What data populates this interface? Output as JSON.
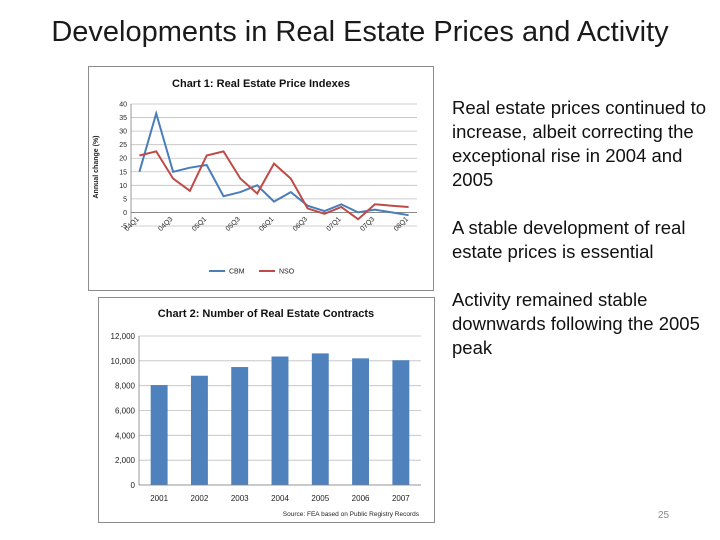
{
  "slide": {
    "title": "Developments in Real Estate Prices and Activity",
    "page_number": "25"
  },
  "bullets": [
    "Real estate prices continued to increase, albeit correcting the exceptional rise in 2004 and 2005",
    "A stable development of real estate prices is essential",
    "Activity remained stable downwards following the 2005 peak"
  ],
  "chart_data": [
    {
      "type": "line",
      "title": "Chart 1: Real Estate Price Indexes",
      "ylabel": "Annual change (%)",
      "xlabel": "",
      "ylim": [
        -5,
        40
      ],
      "yticks": [
        -5,
        0,
        5,
        10,
        15,
        20,
        25,
        30,
        35,
        40
      ],
      "x": [
        "04Q1",
        "04Q2",
        "04Q3",
        "04Q4",
        "05Q1",
        "05Q2",
        "05Q3",
        "05Q4",
        "06Q1",
        "06Q2",
        "06Q3",
        "06Q4",
        "07Q1",
        "07Q2",
        "07Q3",
        "07Q4",
        "08Q1"
      ],
      "xtick_labels": [
        "04Q1",
        "04Q3",
        "05Q1",
        "05Q3",
        "06Q1",
        "06Q3",
        "07Q1",
        "07Q3",
        "08Q1"
      ],
      "grid": true,
      "legend": "bottom",
      "series": [
        {
          "name": "CBM",
          "color": "#4a7ebb",
          "values": [
            15,
            36.5,
            15,
            16.5,
            17.5,
            6,
            7.5,
            10,
            4,
            7.5,
            2.5,
            0.5,
            3,
            0,
            1,
            0,
            -1
          ]
        },
        {
          "name": "NSO",
          "color": "#be4b48",
          "values": [
            21,
            22.5,
            12.5,
            8,
            21,
            22.5,
            12.5,
            7,
            18,
            12.5,
            1.5,
            -0.5,
            2,
            -2.5,
            3,
            2.5,
            2
          ]
        }
      ]
    },
    {
      "type": "bar",
      "title": "Chart 2: Number of Real Estate Contracts",
      "categories": [
        "2001",
        "2002",
        "2003",
        "2004",
        "2005",
        "2006",
        "2007"
      ],
      "values": [
        8050,
        8800,
        9500,
        10350,
        10600,
        10200,
        10050
      ],
      "ylim": [
        0,
        12000
      ],
      "yticks": [
        "0",
        "2,000",
        "4,000",
        "6,000",
        "8,000",
        "10,000",
        "12,000"
      ],
      "ytick_values": [
        0,
        2000,
        4000,
        6000,
        8000,
        10000,
        12000
      ],
      "xlabel": "",
      "ylabel": "",
      "grid": true,
      "bar_color": "#4f81bd",
      "source": "Source: FEA based on Public Registry Records"
    }
  ]
}
